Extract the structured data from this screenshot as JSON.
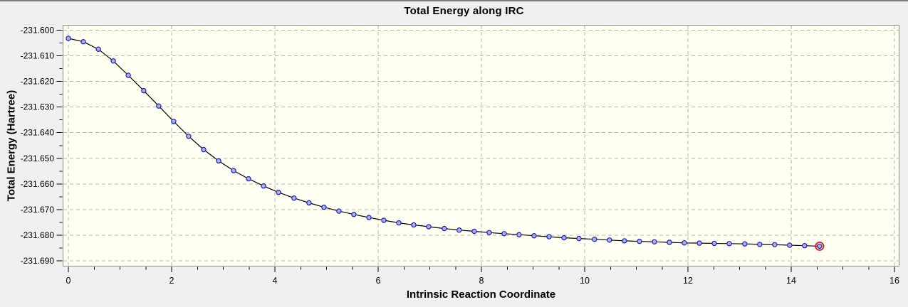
{
  "colors": {
    "background": "#f0f0f0",
    "plot_background": "#fffff2",
    "plot_border": "#8c8c8c",
    "gridline": "#b4b4b4",
    "line": "#000000",
    "marker_fill": "#aab3ee",
    "marker_stroke": "#1f1fb4",
    "selected_marker_ring": "#e01818",
    "tick": "#000000",
    "text": "#000000"
  },
  "chart_data": {
    "type": "line",
    "title": "Total Energy along IRC",
    "xlabel": "Intrinsic Reaction Coordinate",
    "ylabel": "Total Energy (Hartree)",
    "xlim": [
      0,
      16
    ],
    "ylim": [
      -231.69,
      -231.6
    ],
    "grid": "dashed, major ticks only, both axes",
    "legend": "none",
    "x_axis": {
      "major_ticks": [
        0,
        2,
        4,
        6,
        8,
        10,
        12,
        14,
        16
      ],
      "minor_ticks": [
        0.5,
        1,
        1.5,
        2.5,
        3,
        3.5,
        4.5,
        5,
        5.5,
        6.5,
        7,
        7.5,
        8.5,
        9,
        9.5,
        10.5,
        11,
        11.5,
        12.5,
        13,
        13.5,
        14.5,
        15,
        15.5
      ],
      "tick_label_decimals": 0
    },
    "y_axis": {
      "major_ticks": [
        -231.6,
        -231.61,
        -231.62,
        -231.63,
        -231.64,
        -231.65,
        -231.66,
        -231.67,
        -231.68,
        -231.69
      ],
      "minor_ticks": [
        -231.605,
        -231.615,
        -231.625,
        -231.635,
        -231.645,
        -231.655,
        -231.665,
        -231.675,
        -231.685
      ],
      "tick_label_decimals": 3
    },
    "series": [
      {
        "name": "Total Energy",
        "marker": "circle",
        "x": [
          0.0,
          0.29,
          0.58,
          0.87,
          1.16,
          1.46,
          1.75,
          2.04,
          2.33,
          2.62,
          2.91,
          3.2,
          3.49,
          3.78,
          4.07,
          4.37,
          4.66,
          4.95,
          5.24,
          5.53,
          5.82,
          6.11,
          6.4,
          6.69,
          6.98,
          7.28,
          7.57,
          7.86,
          8.15,
          8.44,
          8.73,
          9.02,
          9.31,
          9.6,
          9.89,
          10.19,
          10.48,
          10.77,
          11.06,
          11.35,
          11.64,
          11.93,
          12.22,
          12.51,
          12.8,
          13.1,
          13.39,
          13.68,
          13.97,
          14.26,
          14.55
        ],
        "y": [
          -231.6032,
          -231.6045,
          -231.6074,
          -231.612,
          -231.6176,
          -231.6236,
          -231.6296,
          -231.6356,
          -231.6414,
          -231.6466,
          -231.651,
          -231.6548,
          -231.658,
          -231.6608,
          -231.6633,
          -231.6655,
          -231.6674,
          -231.6691,
          -231.6706,
          -231.6719,
          -231.6731,
          -231.6742,
          -231.6752,
          -231.676,
          -231.6767,
          -231.6774,
          -231.678,
          -231.6785,
          -231.679,
          -231.6794,
          -231.6798,
          -231.6802,
          -231.6806,
          -231.681,
          -231.6813,
          -231.6816,
          -231.6819,
          -231.6822,
          -231.6824,
          -231.6826,
          -231.6828,
          -231.683,
          -231.6831,
          -231.6832,
          -231.6833,
          -231.6834,
          -231.6836,
          -231.6837,
          -231.6839,
          -231.6841,
          -231.6843
        ]
      }
    ],
    "highlight": {
      "point_index": 50,
      "style": "red ring around final data point"
    }
  }
}
